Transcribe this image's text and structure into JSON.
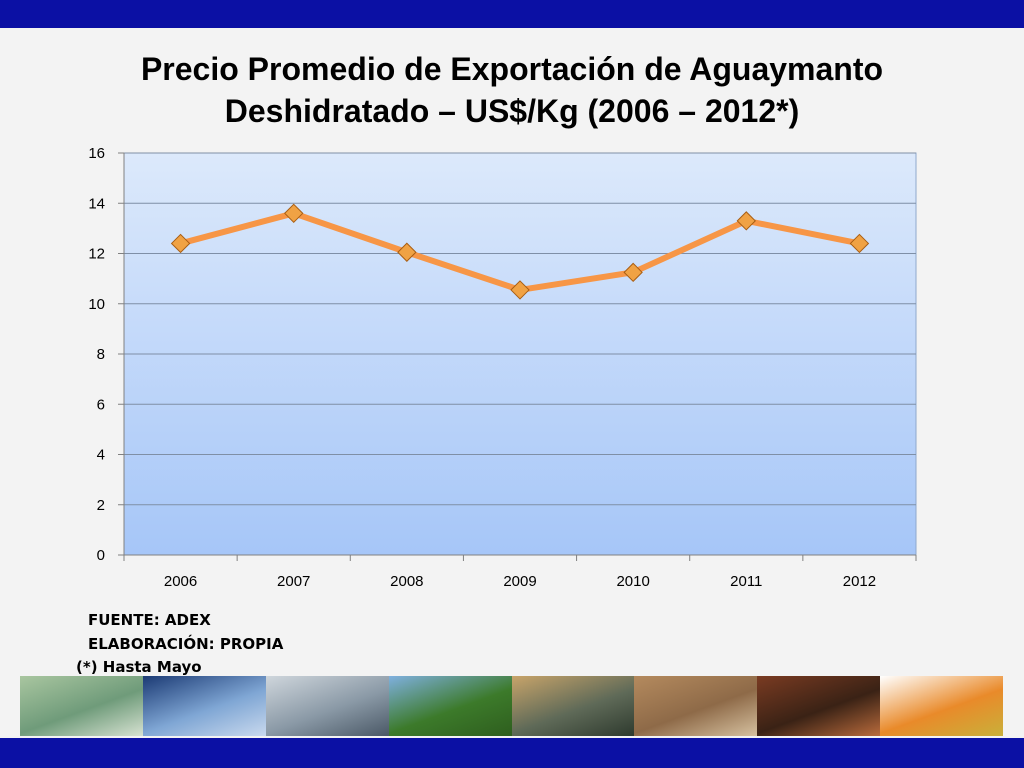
{
  "slide": {
    "title_line1": "Precio Promedio de Exportación de Aguaymanto",
    "title_line2": "Deshidratado – US$/Kg (2006 – 2012*)",
    "source_note": "FUENTE: ADEX",
    "elaboration_note": "ELABORACIÓN: PROPIA",
    "footnote": "(*) Hasta Mayo",
    "bar_color": "#0b10a4"
  },
  "chart_data": {
    "type": "line",
    "title": "Precio Promedio de Exportación de Aguaymanto Deshidratado – US$/Kg (2006 – 2012*)",
    "categories": [
      "2006",
      "2007",
      "2008",
      "2009",
      "2010",
      "2011",
      "2012"
    ],
    "series": [
      {
        "values": [
          12.4,
          13.6,
          12.05,
          10.55,
          11.25,
          13.3,
          12.4
        ],
        "color": "#f79646",
        "marker": "diamond",
        "marker_color": "#f0a244"
      }
    ],
    "ylim": [
      0,
      16
    ],
    "yticks": [
      0,
      2,
      4,
      6,
      8,
      10,
      12,
      14,
      16
    ],
    "xlabel": "",
    "ylabel": "",
    "grid": true,
    "legend": "none",
    "plot_background": "blue-gradient"
  },
  "photos": [
    {
      "name": "money-photo",
      "colors": [
        "#a9c6a0",
        "#6f9b7a",
        "#d7e2d2"
      ]
    },
    {
      "name": "globe-map-photo",
      "colors": [
        "#1b3a74",
        "#7fa6d4",
        "#c9d9ee"
      ]
    },
    {
      "name": "cargo-ship-photo",
      "colors": [
        "#cfd6dc",
        "#8a99a6",
        "#4a5866"
      ]
    },
    {
      "name": "crop-field-photo",
      "colors": [
        "#7fb0df",
        "#3c7a2a",
        "#2e5e1e"
      ]
    },
    {
      "name": "farm-workers-photo",
      "colors": [
        "#c8a46a",
        "#5f6a58",
        "#2e3a2e"
      ]
    },
    {
      "name": "vicunas-photo",
      "colors": [
        "#b48a5e",
        "#8e6a48",
        "#d6c1a0"
      ]
    },
    {
      "name": "dried-fruit-photo",
      "colors": [
        "#7a3b22",
        "#3a2215",
        "#b96b3c"
      ]
    },
    {
      "name": "golden-berries-photo",
      "colors": [
        "#ffffff",
        "#e98a2a",
        "#c9b03a"
      ]
    }
  ]
}
